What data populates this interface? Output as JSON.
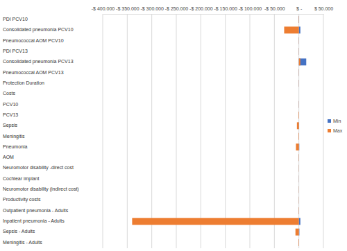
{
  "chart_data": {
    "type": "bar",
    "orientation": "horizontal",
    "categories": [
      "PDI PCV10",
      "Consolidated pneumonia PCV10",
      "Pneumococcal AOM PCV10",
      "PDI PCV13",
      "Consolidated pneumonia PCV13",
      "Pneumococcal AOM PCV13",
      "Protection Duration",
      "Costs",
      "PCV10",
      "PCV13",
      "Sepsis",
      "Meningitis",
      "Pneumonia",
      "AOM",
      "Neuromotor disability  -direct cost",
      "Cochlear implant",
      "Neuromotor disability (indirect cost)",
      "Productivity costs",
      "Outpatient pneumonia - Adults",
      "Inpatient pneumonia - Adults",
      "Sepsis - Adults",
      "Meningitis - Adults"
    ],
    "series": [
      {
        "name": "Min",
        "color": "#4472c4",
        "values": [
          500,
          3000,
          300,
          300,
          15000,
          300,
          300,
          0,
          300,
          300,
          500,
          300,
          800,
          300,
          200,
          200,
          200,
          200,
          300,
          3000,
          1000,
          300
        ]
      },
      {
        "name": "Max",
        "color": "#ed7d31",
        "values": [
          -500,
          -30000,
          -300,
          -300,
          3000,
          -300,
          -300,
          0,
          -300,
          -800,
          -4000,
          -800,
          -6000,
          -500,
          -300,
          -200,
          -300,
          -300,
          -500,
          -340000,
          -7000,
          -800
        ]
      }
    ],
    "xlim": [
      -400000,
      50000
    ],
    "xticks": [
      {
        "value": -400000,
        "label": "-$ 400.000"
      },
      {
        "value": -350000,
        "label": "-$ 350.000"
      },
      {
        "value": -300000,
        "label": "-$ 300.000"
      },
      {
        "value": -250000,
        "label": "-$ 250.000"
      },
      {
        "value": -200000,
        "label": "-$ 200.000"
      },
      {
        "value": -150000,
        "label": "-$ 150.000"
      },
      {
        "value": -100000,
        "label": "-$ 100.000"
      },
      {
        "value": -50000,
        "label": "-$ 50.000"
      },
      {
        "value": 0,
        "label": "$ -"
      },
      {
        "value": 50000,
        "label": "$ 50.000"
      }
    ],
    "grid": true,
    "legend": "right"
  }
}
